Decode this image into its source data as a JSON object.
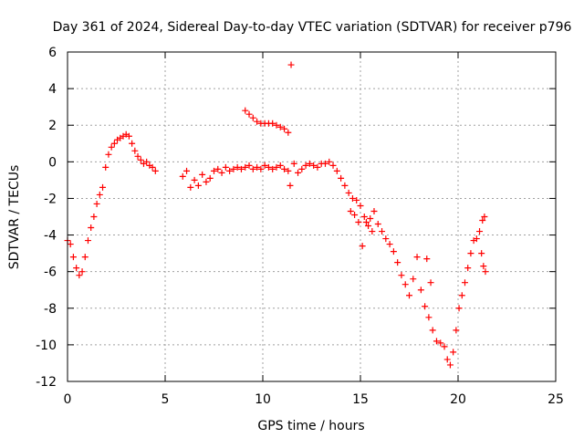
{
  "chart_data": {
    "type": "scatter",
    "title": "Day 361 of 2024, Sidereal Day-to-day VTEC variation (SDTVAR) for receiver p796",
    "xlabel": "GPS time / hours",
    "ylabel": "SDTVAR / TECUs",
    "xlim": [
      0,
      25
    ],
    "ylim": [
      -12,
      6
    ],
    "xticks": [
      0,
      5,
      10,
      15,
      20,
      25
    ],
    "yticks": [
      -12,
      -10,
      -8,
      -6,
      -4,
      -2,
      0,
      2,
      4,
      6
    ],
    "grid": true,
    "marker": "+",
    "series": [
      {
        "name": "SDTVAR",
        "color": "#ff0000",
        "x": [
          0.0,
          0.15,
          0.3,
          0.45,
          0.6,
          0.75,
          0.9,
          1.05,
          1.2,
          1.35,
          1.5,
          1.65,
          1.8,
          1.95,
          2.1,
          2.25,
          2.4,
          2.55,
          2.7,
          2.85,
          3.0,
          3.15,
          3.3,
          3.45,
          3.6,
          3.75,
          3.9,
          4.05,
          4.2,
          4.35,
          4.5,
          5.9,
          6.1,
          6.3,
          6.5,
          6.7,
          6.9,
          7.1,
          7.3,
          7.5,
          7.7,
          7.9,
          8.1,
          8.3,
          8.5,
          8.7,
          8.9,
          9.1,
          9.3,
          9.5,
          9.7,
          9.9,
          10.1,
          10.3,
          10.5,
          10.7,
          10.9,
          11.1,
          11.3,
          9.1,
          9.3,
          9.5,
          9.7,
          9.9,
          10.1,
          10.3,
          10.5,
          10.7,
          10.9,
          11.1,
          11.3,
          11.45,
          11.4,
          11.6,
          11.8,
          12.0,
          12.2,
          12.4,
          12.6,
          12.8,
          13.0,
          13.2,
          13.4,
          13.6,
          13.8,
          14.0,
          14.2,
          14.4,
          14.6,
          14.8,
          15.0,
          15.2,
          15.4,
          15.6,
          14.5,
          14.7,
          14.9,
          15.1,
          15.3,
          15.5,
          15.7,
          15.9,
          16.1,
          16.3,
          16.5,
          16.7,
          16.9,
          17.1,
          17.3,
          17.5,
          17.7,
          17.9,
          18.1,
          18.3,
          18.5,
          18.7,
          18.9,
          19.1,
          19.3,
          19.45,
          19.6,
          19.75,
          19.9,
          20.05,
          20.2,
          20.35,
          20.5,
          20.65,
          20.8,
          20.95,
          21.1,
          21.25,
          21.35,
          18.4,
          18.6,
          21.4,
          21.3,
          21.2
        ],
        "y": [
          -4.3,
          -4.5,
          -5.2,
          -5.8,
          -6.2,
          -6.0,
          -5.2,
          -4.3,
          -3.6,
          -3.0,
          -2.3,
          -1.8,
          -1.4,
          -0.3,
          0.4,
          0.8,
          1.0,
          1.2,
          1.3,
          1.4,
          1.5,
          1.4,
          1.0,
          0.6,
          0.3,
          0.1,
          -0.1,
          0.0,
          -0.2,
          -0.3,
          -0.5,
          -0.8,
          -0.5,
          -1.4,
          -1.0,
          -1.3,
          -0.7,
          -1.1,
          -0.9,
          -0.5,
          -0.4,
          -0.6,
          -0.3,
          -0.5,
          -0.4,
          -0.3,
          -0.4,
          -0.3,
          -0.2,
          -0.4,
          -0.3,
          -0.4,
          -0.2,
          -0.3,
          -0.4,
          -0.3,
          -0.2,
          -0.4,
          -0.5,
          2.8,
          2.6,
          2.4,
          2.2,
          2.1,
          2.1,
          2.1,
          2.1,
          2.0,
          1.9,
          1.8,
          1.6,
          5.3,
          -1.3,
          -0.1,
          -0.6,
          -0.4,
          -0.2,
          -0.1,
          -0.2,
          -0.3,
          -0.1,
          -0.1,
          0.0,
          -0.2,
          -0.5,
          -0.9,
          -1.3,
          -1.7,
          -2.0,
          -2.1,
          -2.4,
          -3.0,
          -3.5,
          -3.8,
          -2.7,
          -2.9,
          -3.3,
          -4.6,
          -3.3,
          -3.1,
          -2.7,
          -3.4,
          -3.8,
          -4.2,
          -4.5,
          -4.9,
          -5.5,
          -6.2,
          -6.7,
          -7.3,
          -6.4,
          -5.2,
          -7.0,
          -7.9,
          -8.5,
          -9.2,
          -9.8,
          -9.9,
          -10.1,
          -10.8,
          -11.1,
          -10.4,
          -9.2,
          -8.0,
          -7.3,
          -6.6,
          -5.8,
          -5.0,
          -4.3,
          -4.2,
          -3.8,
          -3.2,
          -3.0,
          -5.3,
          -6.6,
          -6.0,
          -5.7,
          -5.0
        ]
      }
    ]
  }
}
